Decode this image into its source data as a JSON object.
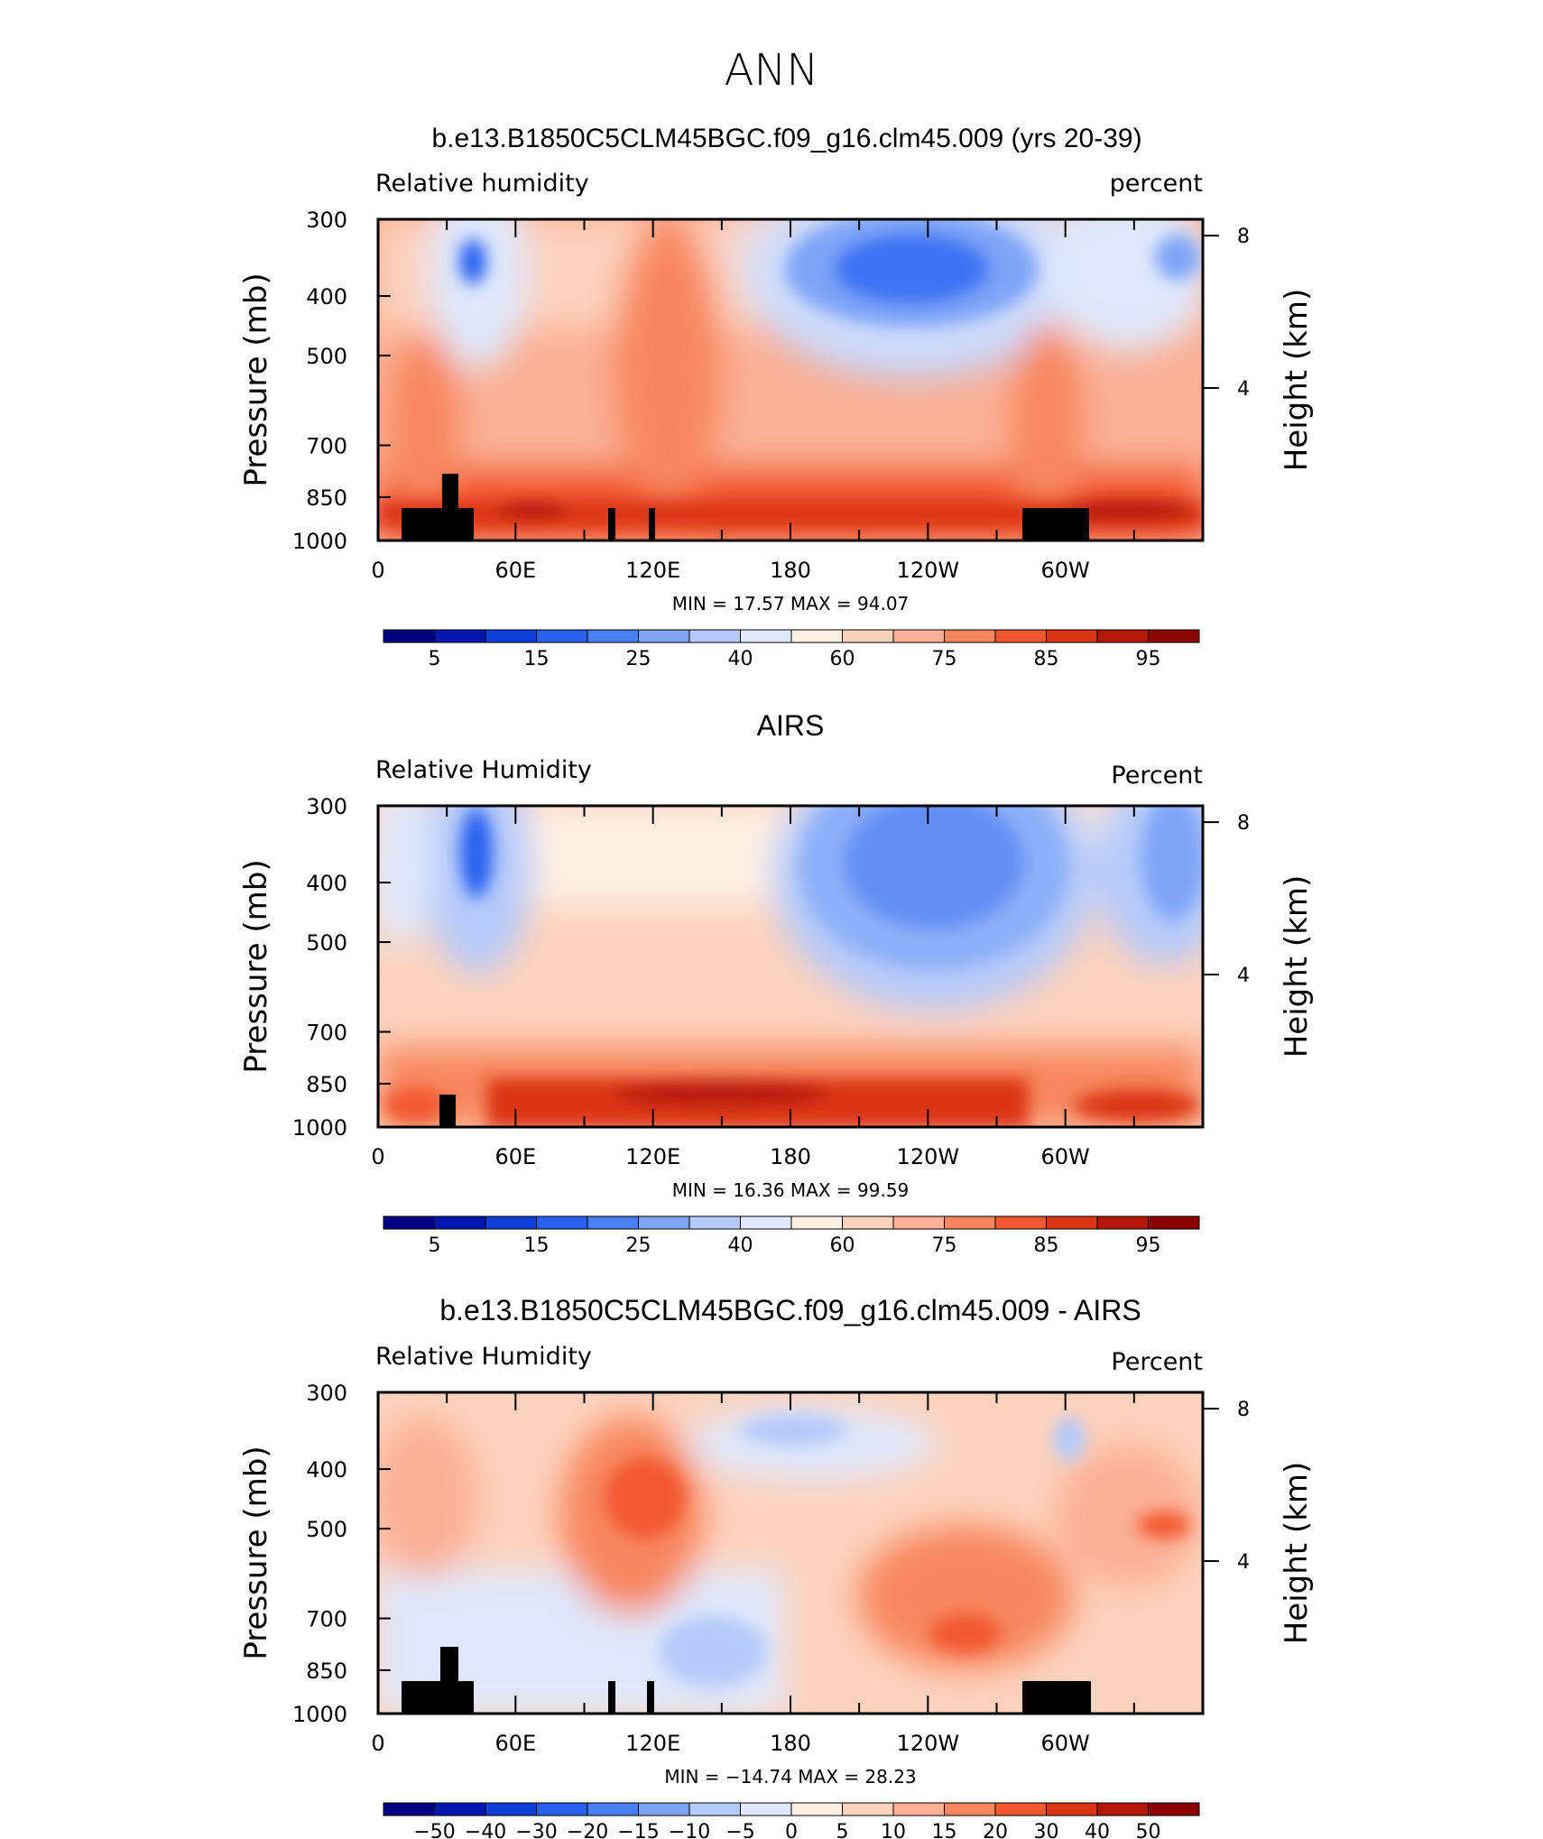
{
  "figure": {
    "title": "ANN"
  },
  "panels": [
    {
      "title": "b.e13.B1850C5CLM45BGC.f09_g16.clm45.009 (yrs 20-39)",
      "left_label": "Relative  humidity",
      "right_label": "percent",
      "stats": "MIN =    17.57   MAX =    94.07",
      "min": 17.57,
      "max": 94.07,
      "colorbar": {
        "colors": [
          "#000080",
          "#0018b0",
          "#0f3fd8",
          "#2860f0",
          "#4a7ef5",
          "#7ea4f7",
          "#b5cafa",
          "#dfe8fc",
          "#fff0e4",
          "#fdd2bd",
          "#fbb095",
          "#f8875f",
          "#f25830",
          "#dc3514",
          "#b51808",
          "#8c0000"
        ],
        "labels": [
          "5",
          "15",
          "25",
          "40",
          "60",
          "75",
          "85",
          "95"
        ]
      }
    },
    {
      "title": "AIRS",
      "left_label": "Relative  Humidity",
      "right_label": "Percent",
      "stats": "MIN =    16.36   MAX =    99.59",
      "min": 16.36,
      "max": 99.59,
      "colorbar": {
        "colors": [
          "#000080",
          "#0018b0",
          "#0f3fd8",
          "#2860f0",
          "#4a7ef5",
          "#7ea4f7",
          "#b5cafa",
          "#dfe8fc",
          "#fff0e4",
          "#fdd2bd",
          "#fbb095",
          "#f8875f",
          "#f25830",
          "#dc3514",
          "#b51808",
          "#8c0000"
        ],
        "labels": [
          "5",
          "15",
          "25",
          "40",
          "60",
          "75",
          "85",
          "95"
        ]
      }
    },
    {
      "title": "b.e13.B1850C5CLM45BGC.f09_g16.clm45.009 - AIRS",
      "left_label": "Relative  Humidity",
      "right_label": "Percent",
      "stats": "MIN =  −14.74   MAX =    28.23",
      "min": -14.74,
      "max": 28.23,
      "colorbar": {
        "colors": [
          "#000080",
          "#0018b0",
          "#0f3fd8",
          "#2860f0",
          "#4a7ef5",
          "#7ea4f7",
          "#b5cafa",
          "#dfe8fc",
          "#fff0e4",
          "#fdd2bd",
          "#fbb095",
          "#f8875f",
          "#f25830",
          "#dc3514",
          "#b51808",
          "#8c0000"
        ],
        "labels": [
          "−50",
          "−40",
          "−30",
          "−20",
          "−15",
          "−10",
          "−5",
          "0",
          "5",
          "10",
          "15",
          "20",
          "30",
          "40",
          "50"
        ]
      }
    }
  ],
  "axes": {
    "ylabel_left": "Pressure  (mb)",
    "ylabel_right": "Height  (km)",
    "pressure_ticks": [
      "300",
      "400",
      "500",
      "700",
      "850",
      "1000"
    ],
    "pressure_values": [
      300,
      400,
      500,
      700,
      850,
      1000
    ],
    "height_ticks": [
      "8",
      "4"
    ],
    "height_values_km": [
      8,
      4
    ],
    "lon_ticks": [
      "0",
      "60E",
      "120E",
      "180",
      "120W",
      "60W"
    ],
    "lon_values_deg": [
      0,
      60,
      120,
      180,
      240,
      300
    ],
    "lon_range": [
      0,
      360
    ],
    "pressure_range": [
      1000,
      300
    ],
    "log_pressure": true
  },
  "chart_data": [
    {
      "type": "heatmap",
      "title": "b.e13.B1850C5CLM45BGC.f09_g16.clm45.009 (yrs 20-39)",
      "xlabel": "",
      "ylabel": "Pressure  (mb)",
      "xlim": [
        0,
        360
      ],
      "ylim": [
        1000,
        300
      ],
      "variable": "Relative  humidity",
      "units": "percent",
      "min": 17.57,
      "max": 94.07,
      "contour_levels": [
        5,
        10,
        15,
        20,
        25,
        30,
        40,
        50,
        60,
        65,
        75,
        80,
        85,
        90,
        95
      ]
    },
    {
      "type": "heatmap",
      "title": "AIRS",
      "xlabel": "",
      "ylabel": "Pressure  (mb)",
      "xlim": [
        0,
        360
      ],
      "ylim": [
        1000,
        300
      ],
      "variable": "Relative  Humidity",
      "units": "Percent",
      "min": 16.36,
      "max": 99.59,
      "contour_levels": [
        5,
        10,
        15,
        20,
        25,
        30,
        40,
        50,
        60,
        65,
        75,
        80,
        85,
        90,
        95
      ]
    },
    {
      "type": "heatmap",
      "title": "b.e13.B1850C5CLM45BGC.f09_g16.clm45.009 - AIRS",
      "xlabel": "",
      "ylabel": "Pressure  (mb)",
      "xlim": [
        0,
        360
      ],
      "ylim": [
        1000,
        300
      ],
      "variable": "Relative  Humidity",
      "units": "Percent",
      "min": -14.74,
      "max": 28.23,
      "contour_levels": [
        -50,
        -40,
        -30,
        -20,
        -15,
        -10,
        -5,
        0,
        5,
        10,
        15,
        20,
        30,
        40,
        50
      ]
    }
  ]
}
